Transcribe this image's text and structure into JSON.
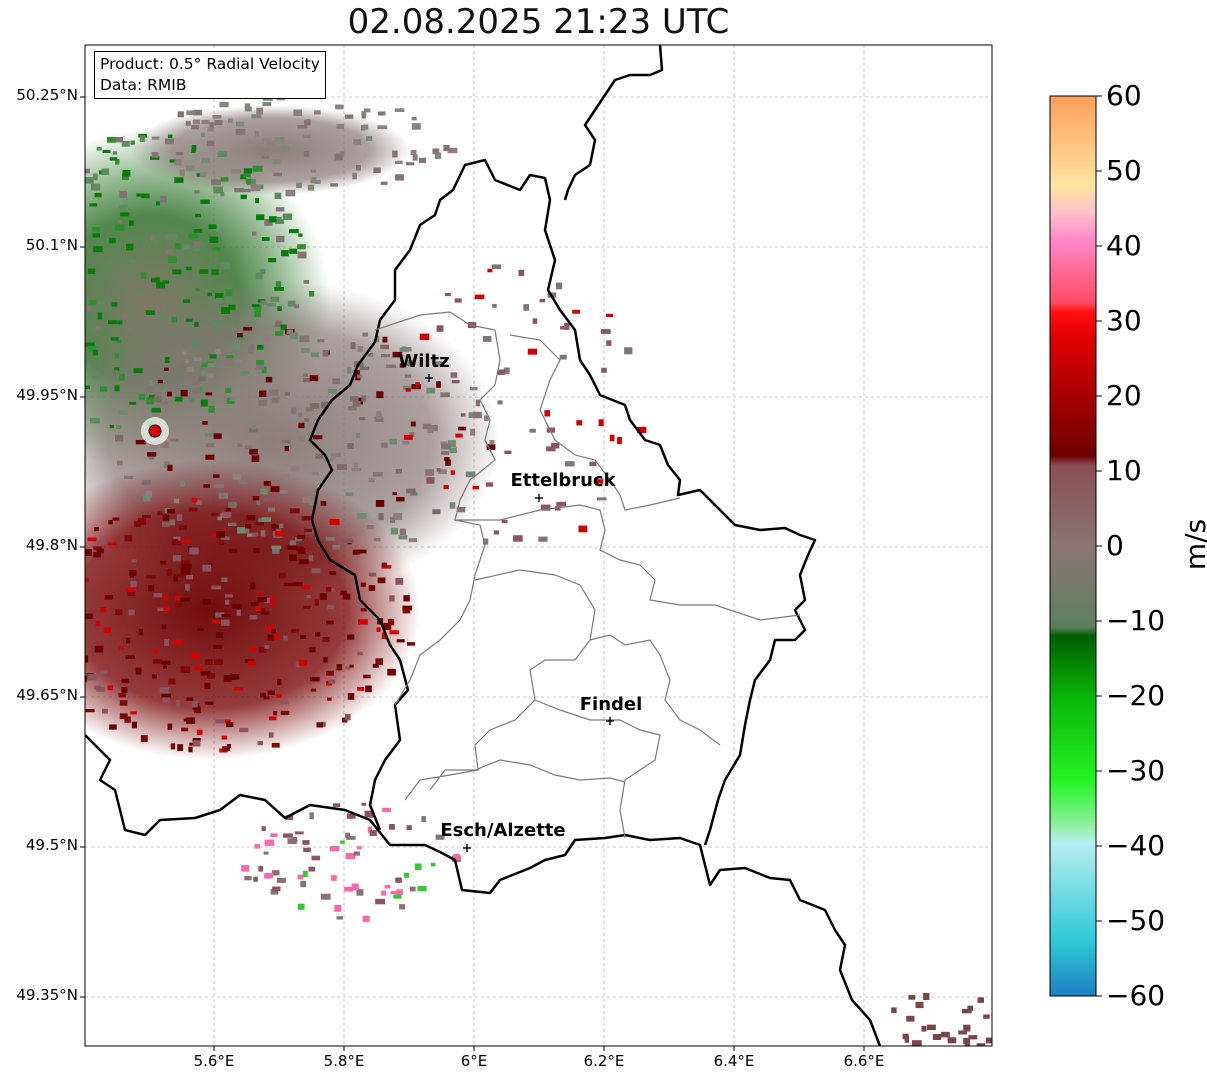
{
  "title": "02.08.2025 21:23 UTC",
  "info": {
    "line1": "Product: 0.5° Radial Velocity",
    "line2": "Data: RMIB"
  },
  "lat_labels": [
    "50.25°N",
    "50.1°N",
    "49.95°N",
    "49.8°N",
    "49.65°N",
    "49.5°N",
    "49.35°N"
  ],
  "lon_labels": [
    "5.6°E",
    "5.8°E",
    "6°E",
    "6.2°E",
    "6.4°E",
    "6.6°E"
  ],
  "cities": [
    {
      "name": "Wiltz"
    },
    {
      "name": "Ettelbruck"
    },
    {
      "name": "Findel"
    },
    {
      "name": "Esch/Alzette"
    }
  ],
  "colorbar": {
    "unit": "m/s",
    "ticks": [
      "60",
      "50",
      "40",
      "30",
      "20",
      "10",
      "0",
      "−10",
      "−20",
      "−30",
      "−40",
      "−50",
      "−60"
    ],
    "range": [
      -60,
      60
    ]
  },
  "colors": {
    "receding_dark": "#6b0000",
    "receding_red": "#d40000",
    "near_zero_gray": "#857272",
    "approaching_green": "#0a7a0a",
    "radar_site": "#ff0000"
  }
}
